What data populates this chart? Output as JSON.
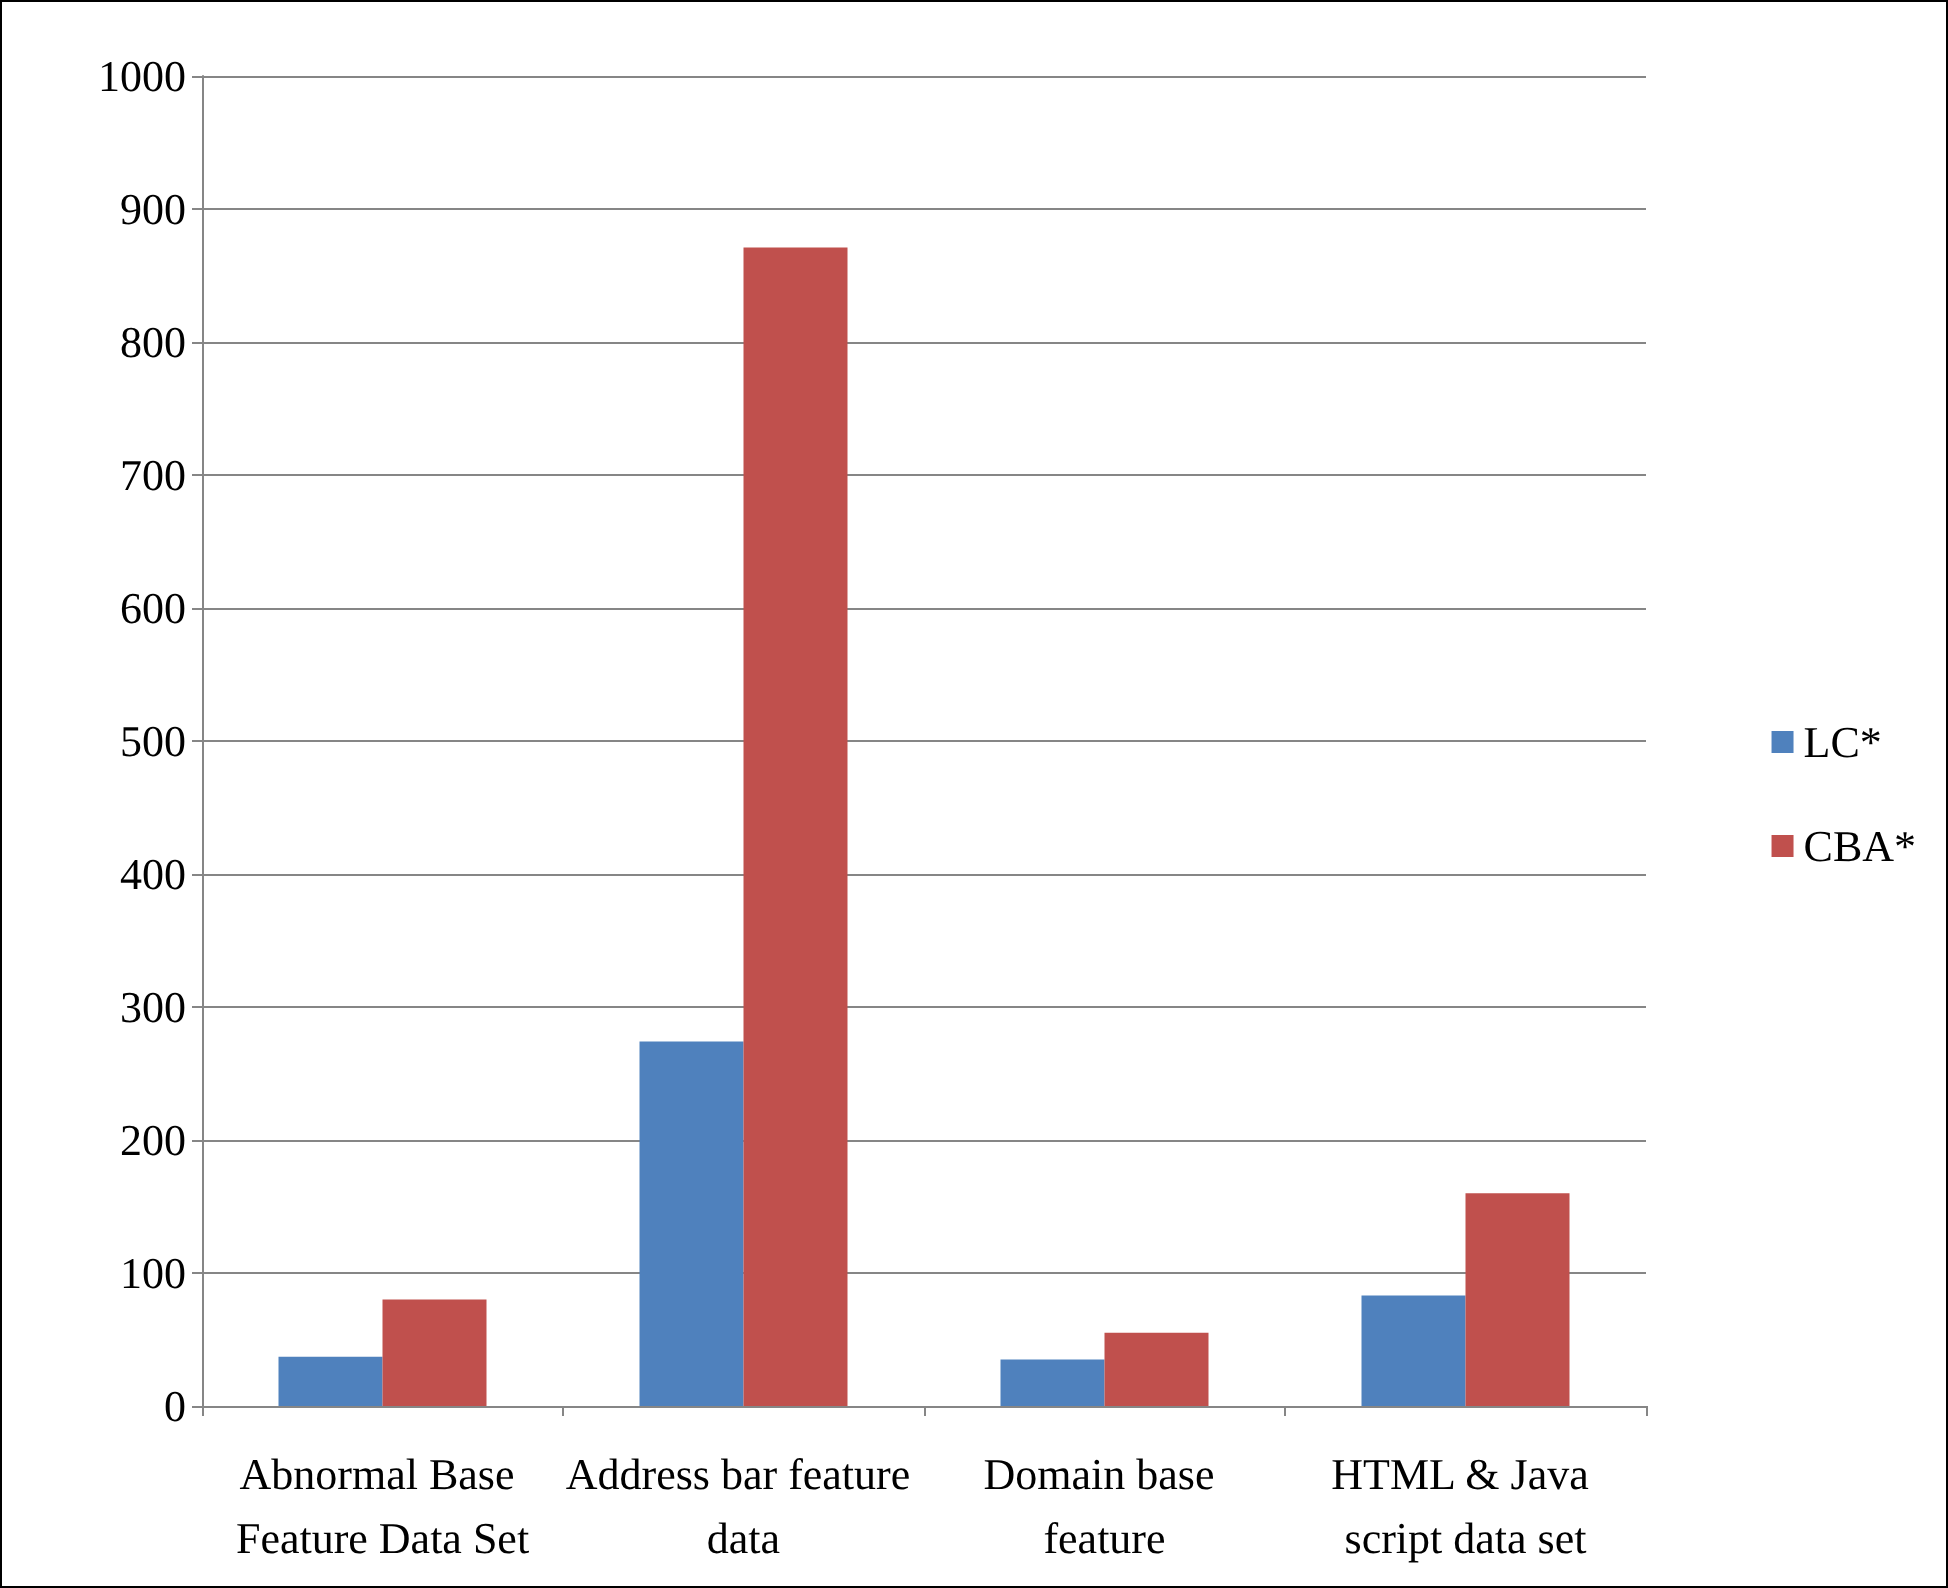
{
  "chart_data": {
    "type": "bar",
    "categories": [
      "Abnormal Base Feature Data Set",
      "Address bar feature data",
      "Domain base feature",
      "HTML & Java script data set"
    ],
    "series": [
      {
        "name": "LC*",
        "color": "#4f81bd",
        "values": [
          37,
          274,
          35,
          83
        ]
      },
      {
        "name": "CBA*",
        "color": "#c0504d",
        "values": [
          80,
          871,
          55,
          160
        ]
      }
    ],
    "ylim": [
      0,
      1000
    ],
    "yticks": [
      0,
      100,
      200,
      300,
      400,
      500,
      600,
      700,
      800,
      900,
      1000
    ],
    "grid": "y",
    "legend": "right"
  }
}
